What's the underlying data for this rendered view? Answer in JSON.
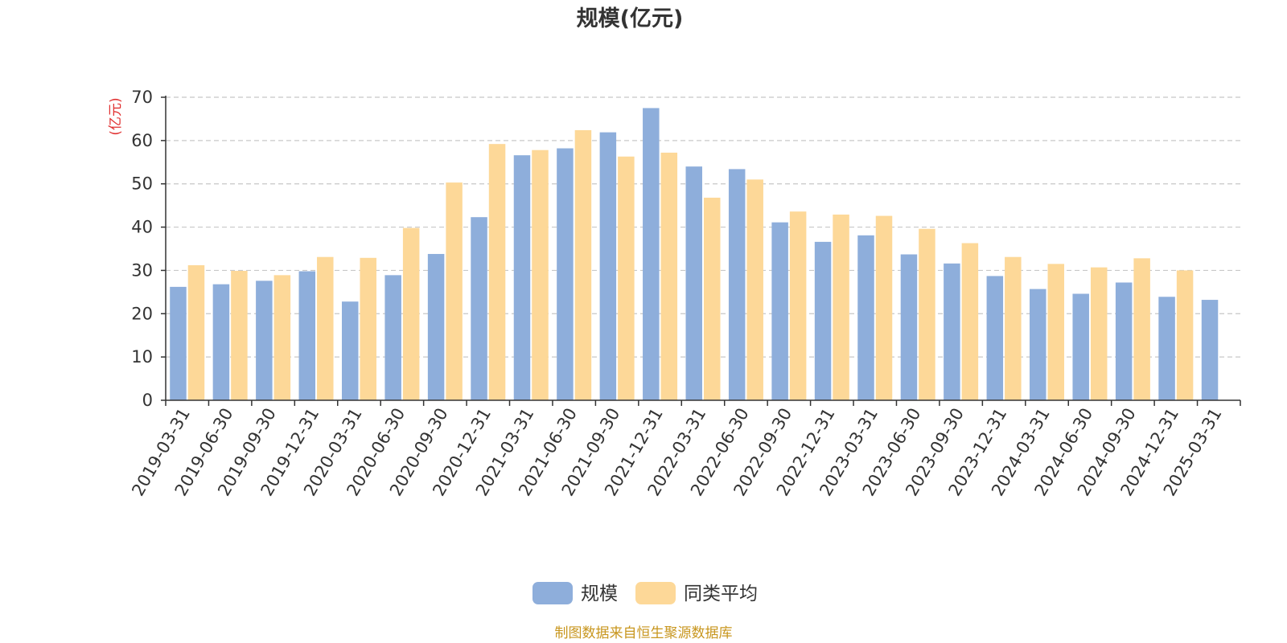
{
  "chart_data": {
    "type": "bar",
    "title": "规模(亿元)",
    "ylabel": "(亿元)",
    "ylim": [
      0,
      70
    ],
    "yticks": [
      0,
      10,
      20,
      30,
      40,
      50,
      60,
      70
    ],
    "grid": true,
    "legend_position": "bottom-center",
    "categories": [
      "2019-03-31",
      "2019-06-30",
      "2019-09-30",
      "2019-12-31",
      "2020-03-31",
      "2020-06-30",
      "2020-09-30",
      "2020-12-31",
      "2021-03-31",
      "2021-06-30",
      "2021-09-30",
      "2021-12-31",
      "2022-03-31",
      "2022-06-30",
      "2022-09-30",
      "2022-12-31",
      "2023-03-31",
      "2023-06-30",
      "2023-09-30",
      "2023-12-31",
      "2024-03-31",
      "2024-06-30",
      "2024-09-30",
      "2024-12-31",
      "2025-03-31"
    ],
    "series": [
      {
        "name": "规模",
        "color": "#8eaedb",
        "values": [
          26.2,
          26.8,
          27.6,
          29.8,
          22.8,
          28.9,
          33.8,
          42.3,
          56.6,
          58.2,
          61.9,
          67.5,
          54.0,
          53.4,
          41.1,
          36.6,
          38.1,
          33.7,
          31.6,
          28.7,
          25.7,
          24.6,
          27.2,
          23.9,
          23.2
        ]
      },
      {
        "name": "同类平均",
        "color": "#fdd898",
        "values": [
          31.2,
          29.9,
          28.9,
          33.1,
          32.9,
          39.8,
          50.3,
          59.2,
          57.8,
          62.4,
          56.3,
          57.2,
          46.8,
          51.0,
          43.6,
          42.9,
          42.6,
          39.6,
          36.3,
          33.1,
          31.5,
          30.7,
          32.8,
          30.0,
          null
        ]
      }
    ]
  },
  "footer": {
    "source": "制图数据来自恒生聚源数据库"
  }
}
